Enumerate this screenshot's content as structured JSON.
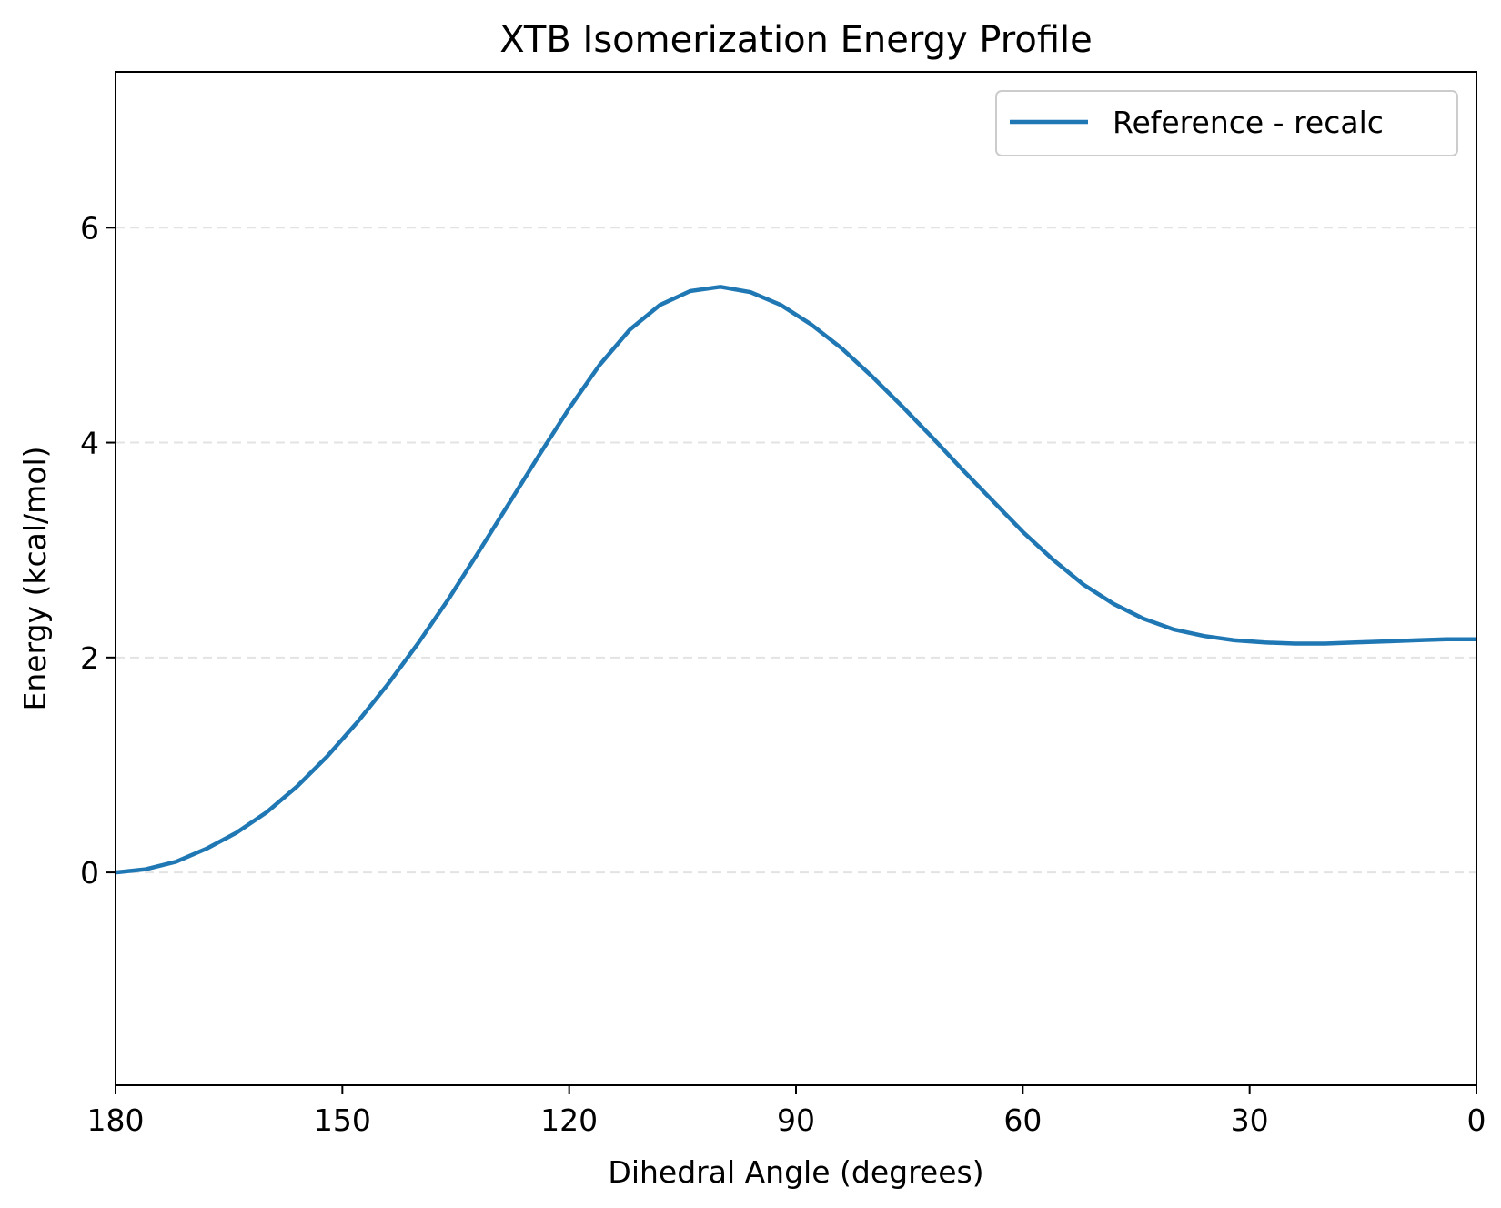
{
  "chart_data": {
    "type": "line",
    "title": "XTB Isomerization Energy Profile",
    "xlabel": "Dihedral Angle (degrees)",
    "ylabel": "Energy (kcal/mol)",
    "xlim": [
      180,
      0
    ],
    "ylim": [
      -1.98,
      7.45
    ],
    "x_inverted": true,
    "xticks": [
      180,
      150,
      120,
      90,
      60,
      30,
      0
    ],
    "yticks": [
      0,
      2,
      4,
      6
    ],
    "grid": "y-dashed",
    "legend_position": "top-right",
    "series": [
      {
        "name": "Reference - recalc",
        "color": "#1f77b4",
        "x": [
          180,
          176,
          172,
          168,
          164,
          160,
          156,
          152,
          148,
          144,
          140,
          136,
          132,
          128,
          124,
          120,
          116,
          112,
          108,
          104,
          100,
          96,
          92,
          88,
          84,
          80,
          76,
          72,
          68,
          64,
          60,
          56,
          52,
          48,
          44,
          40,
          36,
          32,
          28,
          24,
          20,
          16,
          12,
          8,
          4,
          0
        ],
        "y": [
          0.0,
          0.03,
          0.1,
          0.22,
          0.37,
          0.56,
          0.8,
          1.08,
          1.4,
          1.75,
          2.13,
          2.54,
          2.98,
          3.43,
          3.88,
          4.32,
          4.72,
          5.05,
          5.28,
          5.41,
          5.45,
          5.4,
          5.28,
          5.1,
          4.88,
          4.62,
          4.34,
          4.05,
          3.75,
          3.46,
          3.17,
          2.91,
          2.68,
          2.5,
          2.36,
          2.26,
          2.2,
          2.16,
          2.14,
          2.13,
          2.13,
          2.14,
          2.15,
          2.16,
          2.17,
          2.17
        ]
      }
    ]
  }
}
